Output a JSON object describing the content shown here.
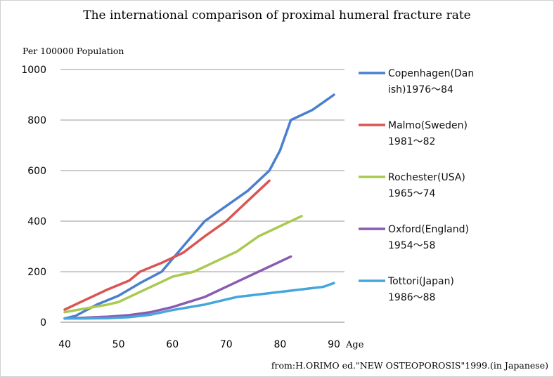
{
  "chart_data": {
    "type": "line",
    "title": "The international comparison of proximal humeral fracture rate",
    "ylabel": "Per 100000 Population",
    "xlabel": "Age",
    "source": "from:H.ORIMO ed.\"NEW OSTEOPOROSIS\"1999.(in Japanese)",
    "xlim": [
      40,
      90
    ],
    "ylim": [
      0,
      1000
    ],
    "xticks": [
      "40",
      "50",
      "60",
      "70",
      "80",
      "90"
    ],
    "yticks": [
      "0",
      "200",
      "400",
      "600",
      "800",
      "1000"
    ],
    "grid": true,
    "legend_position": "right",
    "series": [
      {
        "name": "Copenhagen(Danish)1976～84",
        "legend_lines": [
          "Copenhagen(Dan",
          "ish)1976～84"
        ],
        "color": "#4a7fcf",
        "x": [
          40,
          42,
          46,
          50,
          54,
          58,
          62,
          66,
          70,
          74,
          78,
          80,
          82,
          86,
          88,
          90
        ],
        "y": [
          15,
          25,
          70,
          105,
          155,
          200,
          300,
          400,
          460,
          520,
          600,
          680,
          800,
          840,
          870,
          900
        ]
      },
      {
        "name": "Malmo(Sweden)1981～82",
        "legend_lines": [
          "Malmo(Sweden)",
          "1981～82"
        ],
        "color": "#d95554",
        "x": [
          40,
          44,
          48,
          52,
          54,
          58,
          62,
          66,
          70,
          74,
          78
        ],
        "y": [
          50,
          90,
          130,
          165,
          200,
          235,
          275,
          340,
          400,
          480,
          560
        ]
      },
      {
        "name": "Rochester(USA)1965～74",
        "legend_lines": [
          "Rochester(USA)",
          "1965～74"
        ],
        "color": "#a9c950",
        "x": [
          40,
          44,
          48,
          50,
          54,
          58,
          60,
          64,
          66,
          70,
          72,
          76,
          80,
          84
        ],
        "y": [
          40,
          55,
          70,
          80,
          120,
          160,
          180,
          200,
          220,
          260,
          280,
          340,
          380,
          420
        ]
      },
      {
        "name": "Oxford(England)1954～58",
        "legend_lines": [
          "Oxford(England)",
          "1954～58"
        ],
        "color": "#8a5cb0",
        "x": [
          40,
          44,
          48,
          52,
          56,
          60,
          66,
          70,
          74,
          78,
          82
        ],
        "y": [
          15,
          18,
          22,
          28,
          40,
          60,
          100,
          140,
          180,
          220,
          260
        ]
      },
      {
        "name": "Tottori(Japan)1986～88",
        "legend_lines": [
          "Tottori(Japan)",
          "1986～88"
        ],
        "color": "#45a6dd",
        "x": [
          40,
          44,
          48,
          52,
          56,
          60,
          66,
          70,
          72,
          74,
          78,
          82,
          86,
          88,
          90
        ],
        "y": [
          15,
          15,
          16,
          20,
          30,
          48,
          70,
          90,
          100,
          105,
          115,
          125,
          135,
          140,
          155
        ]
      }
    ]
  }
}
